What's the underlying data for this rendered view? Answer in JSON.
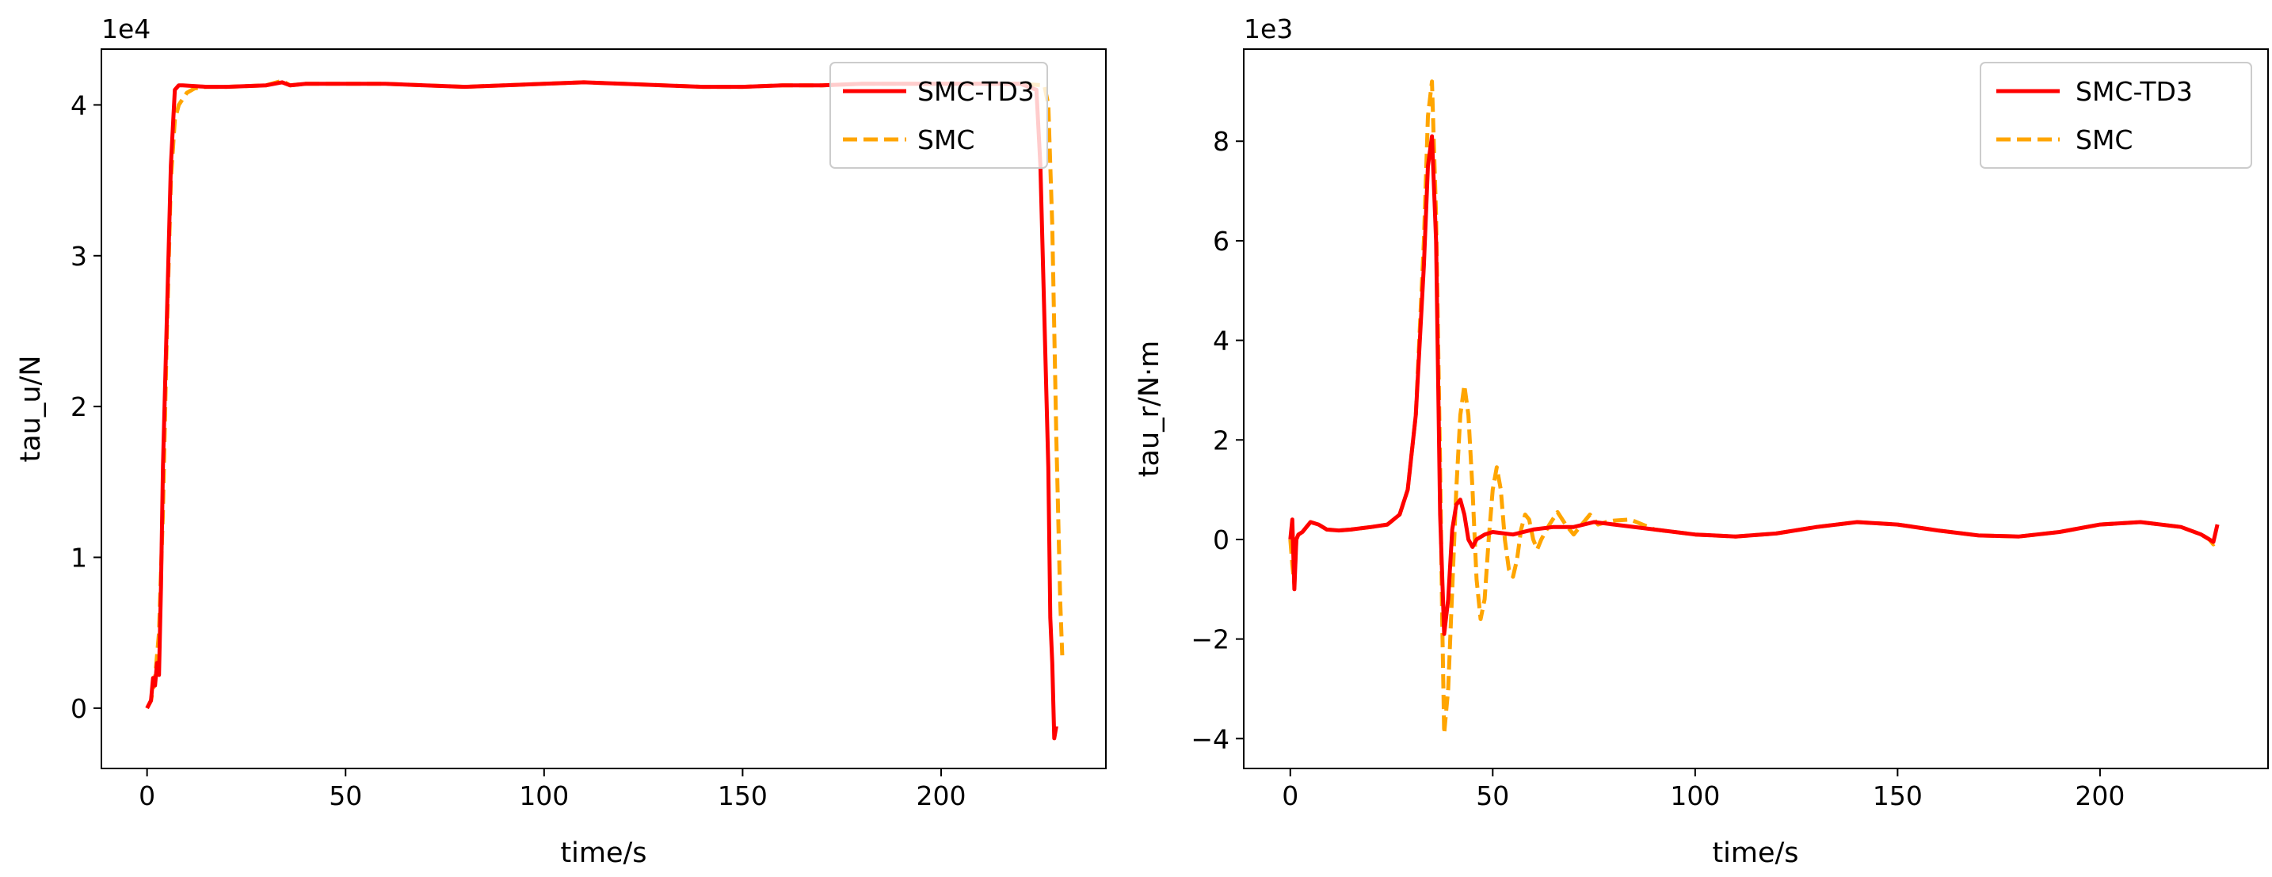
{
  "chart_data": [
    {
      "type": "line",
      "xlabel": "time/s",
      "ylabel": "tau_u/N",
      "offset_text": "1e4",
      "y_scale": 10000,
      "xlim": [
        -11.5,
        241.5
      ],
      "ylim": [
        -0.4,
        4.37
      ],
      "xticks": [
        0,
        50,
        100,
        150,
        200
      ],
      "xtick_labels": [
        "0",
        "50",
        "100",
        "150",
        "200"
      ],
      "yticks": [
        0,
        1,
        2,
        3,
        4
      ],
      "ytick_labels": [
        "0",
        "1",
        "2",
        "3",
        "4"
      ],
      "grid": false,
      "legend_position": "top-right",
      "series": [
        {
          "name": "SMC-TD3",
          "color": "#ff0000",
          "style": "solid",
          "points": [
            [
              0,
              0
            ],
            [
              1,
              0.05
            ],
            [
              1.5,
              0.2
            ],
            [
              2,
              0.15
            ],
            [
              2.5,
              0.3
            ],
            [
              3,
              0.22
            ],
            [
              3.5,
              0.8
            ],
            [
              4,
              1.6
            ],
            [
              5,
              2.6
            ],
            [
              6,
              3.6
            ],
            [
              7,
              4.1
            ],
            [
              8,
              4.13
            ],
            [
              9,
              4.13
            ],
            [
              15,
              4.12
            ],
            [
              20,
              4.12
            ],
            [
              30,
              4.13
            ],
            [
              34,
              4.15
            ],
            [
              36,
              4.13
            ],
            [
              40,
              4.14
            ],
            [
              50,
              4.14
            ],
            [
              60,
              4.14
            ],
            [
              70,
              4.13
            ],
            [
              80,
              4.12
            ],
            [
              90,
              4.13
            ],
            [
              100,
              4.14
            ],
            [
              110,
              4.15
            ],
            [
              120,
              4.14
            ],
            [
              130,
              4.13
            ],
            [
              140,
              4.12
            ],
            [
              150,
              4.12
            ],
            [
              160,
              4.13
            ],
            [
              170,
              4.13
            ],
            [
              180,
              4.14
            ],
            [
              190,
              4.14
            ],
            [
              200,
              4.14
            ],
            [
              210,
              4.14
            ],
            [
              220,
              4.14
            ],
            [
              224,
              4.1
            ],
            [
              225,
              3.6
            ],
            [
              226,
              2.6
            ],
            [
              227,
              1.6
            ],
            [
              227.5,
              0.6
            ],
            [
              228,
              0.3
            ],
            [
              228.5,
              -0.2
            ],
            [
              229,
              -0.12
            ]
          ]
        },
        {
          "name": "SMC",
          "color": "#ffa500",
          "style": "dashed",
          "points": [
            [
              0,
              0
            ],
            [
              1,
              0.05
            ],
            [
              2,
              0.2
            ],
            [
              3,
              0.5
            ],
            [
              4,
              1.3
            ],
            [
              5,
              2.5
            ],
            [
              6,
              3.5
            ],
            [
              7,
              3.9
            ],
            [
              8,
              4.0
            ],
            [
              10,
              4.08
            ],
            [
              12,
              4.11
            ],
            [
              15,
              4.12
            ],
            [
              20,
              4.12
            ],
            [
              30,
              4.13
            ],
            [
              34,
              4.16
            ],
            [
              36,
              4.13
            ],
            [
              40,
              4.14
            ],
            [
              50,
              4.14
            ],
            [
              60,
              4.14
            ],
            [
              70,
              4.13
            ],
            [
              80,
              4.12
            ],
            [
              90,
              4.13
            ],
            [
              100,
              4.14
            ],
            [
              110,
              4.15
            ],
            [
              120,
              4.14
            ],
            [
              130,
              4.13
            ],
            [
              140,
              4.12
            ],
            [
              150,
              4.12
            ],
            [
              160,
              4.13
            ],
            [
              170,
              4.13
            ],
            [
              180,
              4.14
            ],
            [
              190,
              4.14
            ],
            [
              200,
              4.14
            ],
            [
              210,
              4.14
            ],
            [
              220,
              4.14
            ],
            [
              226,
              4.13
            ],
            [
              227,
              4.0
            ],
            [
              228,
              3.2
            ],
            [
              229,
              1.8
            ],
            [
              230,
              0.7
            ],
            [
              230.5,
              0.35
            ]
          ]
        }
      ]
    },
    {
      "type": "line",
      "xlabel": "time/s",
      "ylabel": "tau_r/N·m",
      "offset_text": "1e3",
      "y_scale": 1000,
      "xlim": [
        -11.5,
        241.5
      ],
      "ylim": [
        -4.6,
        9.85
      ],
      "xticks": [
        0,
        50,
        100,
        150,
        200
      ],
      "xtick_labels": [
        "0",
        "50",
        "100",
        "150",
        "200"
      ],
      "yticks": [
        -4,
        -2,
        0,
        2,
        4,
        6,
        8
      ],
      "ytick_labels": [
        "−4",
        "−2",
        "0",
        "2",
        "4",
        "6",
        "8"
      ],
      "grid": false,
      "legend_position": "top-right",
      "series": [
        {
          "name": "SMC-TD3",
          "color": "#ff0000",
          "style": "solid",
          "points": [
            [
              0,
              0
            ],
            [
              0.5,
              0.4
            ],
            [
              1,
              -1.0
            ],
            [
              1.5,
              0
            ],
            [
              2,
              0.1
            ],
            [
              3,
              0.15
            ],
            [
              4,
              0.25
            ],
            [
              5,
              0.35
            ],
            [
              7,
              0.3
            ],
            [
              9,
              0.2
            ],
            [
              12,
              0.18
            ],
            [
              15,
              0.2
            ],
            [
              20,
              0.25
            ],
            [
              24,
              0.3
            ],
            [
              27,
              0.5
            ],
            [
              29,
              1.0
            ],
            [
              31,
              2.5
            ],
            [
              33,
              5.5
            ],
            [
              34,
              7.5
            ],
            [
              35,
              8.1
            ],
            [
              36,
              6.0
            ],
            [
              37,
              0.5
            ],
            [
              38,
              -1.9
            ],
            [
              39,
              -1.2
            ],
            [
              40,
              0.2
            ],
            [
              41,
              0.7
            ],
            [
              42,
              0.8
            ],
            [
              43,
              0.5
            ],
            [
              44,
              0
            ],
            [
              45,
              -0.15
            ],
            [
              46,
              0
            ],
            [
              48,
              0.1
            ],
            [
              50,
              0.15
            ],
            [
              55,
              0.1
            ],
            [
              60,
              0.2
            ],
            [
              65,
              0.25
            ],
            [
              70,
              0.25
            ],
            [
              75,
              0.35
            ],
            [
              80,
              0.3
            ],
            [
              90,
              0.2
            ],
            [
              100,
              0.1
            ],
            [
              110,
              0.06
            ],
            [
              120,
              0.12
            ],
            [
              130,
              0.25
            ],
            [
              140,
              0.35
            ],
            [
              150,
              0.3
            ],
            [
              160,
              0.18
            ],
            [
              170,
              0.08
            ],
            [
              180,
              0.06
            ],
            [
              190,
              0.15
            ],
            [
              200,
              0.3
            ],
            [
              210,
              0.35
            ],
            [
              220,
              0.25
            ],
            [
              225,
              0.1
            ],
            [
              227,
              0
            ],
            [
              228,
              -0.05
            ],
            [
              229,
              0.3
            ]
          ]
        },
        {
          "name": "SMC",
          "color": "#ffa500",
          "style": "dashed",
          "points": [
            [
              0,
              0
            ],
            [
              0.5,
              -0.5
            ],
            [
              1,
              -0.9
            ],
            [
              1.5,
              0
            ],
            [
              2,
              0.1
            ],
            [
              3,
              0.15
            ],
            [
              4,
              0.25
            ],
            [
              5,
              0.35
            ],
            [
              7,
              0.3
            ],
            [
              9,
              0.2
            ],
            [
              12,
              0.18
            ],
            [
              15,
              0.2
            ],
            [
              20,
              0.25
            ],
            [
              24,
              0.3
            ],
            [
              27,
              0.5
            ],
            [
              29,
              1.0
            ],
            [
              31,
              2.5
            ],
            [
              33,
              6.0
            ],
            [
              34,
              8.5
            ],
            [
              35,
              9.2
            ],
            [
              36,
              6.5
            ],
            [
              37,
              1.5
            ],
            [
              37.5,
              -1.5
            ],
            [
              38,
              -3.9
            ],
            [
              39,
              -3.0
            ],
            [
              40,
              -1.0
            ],
            [
              41,
              1.0
            ],
            [
              42,
              2.5
            ],
            [
              43,
              3.1
            ],
            [
              44,
              2.5
            ],
            [
              45,
              1.0
            ],
            [
              46,
              -0.8
            ],
            [
              47,
              -1.6
            ],
            [
              48,
              -1.2
            ],
            [
              49,
              0
            ],
            [
              50,
              1.0
            ],
            [
              51,
              1.45
            ],
            [
              52,
              1.0
            ],
            [
              53,
              0
            ],
            [
              54,
              -0.6
            ],
            [
              55,
              -0.75
            ],
            [
              56,
              -0.4
            ],
            [
              57,
              0.2
            ],
            [
              58,
              0.5
            ],
            [
              59,
              0.4
            ],
            [
              60,
              0
            ],
            [
              61,
              -0.2
            ],
            [
              62,
              0
            ],
            [
              64,
              0.3
            ],
            [
              66,
              0.55
            ],
            [
              68,
              0.3
            ],
            [
              70,
              0.1
            ],
            [
              72,
              0.3
            ],
            [
              74,
              0.5
            ],
            [
              76,
              0.3
            ],
            [
              78,
              0.35
            ],
            [
              80,
              0.38
            ],
            [
              84,
              0.4
            ],
            [
              90,
              0.2
            ],
            [
              100,
              0.1
            ],
            [
              110,
              0.06
            ],
            [
              120,
              0.12
            ],
            [
              130,
              0.25
            ],
            [
              140,
              0.35
            ],
            [
              150,
              0.3
            ],
            [
              160,
              0.18
            ],
            [
              170,
              0.08
            ],
            [
              180,
              0.06
            ],
            [
              190,
              0.15
            ],
            [
              200,
              0.3
            ],
            [
              210,
              0.35
            ],
            [
              220,
              0.25
            ],
            [
              225,
              0.1
            ],
            [
              227,
              0
            ],
            [
              228,
              -0.1
            ],
            [
              229,
              0
            ]
          ]
        }
      ]
    }
  ]
}
